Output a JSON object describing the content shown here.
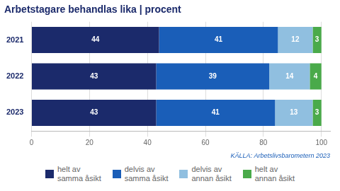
{
  "chart_data": {
    "type": "bar",
    "orientation": "horizontal",
    "stacked": true,
    "title": "Arbetstagare behandlas lika | procent",
    "annotations": [
      "KÄLLA: Arbetslivsbarometern 2023"
    ],
    "categories": [
      "2021",
      "2022",
      "2023"
    ],
    "series": [
      {
        "name": "helt av\nsamma åsikt",
        "color": "#1b2a6b",
        "values": [
          44,
          43,
          43
        ]
      },
      {
        "name": "delvis av\nsamma åsikt",
        "color": "#1a5eb8",
        "values": [
          41,
          39,
          41
        ]
      },
      {
        "name": "delvis av\nannan åsikt",
        "color": "#90bfe0",
        "values": [
          12,
          14,
          13
        ]
      },
      {
        "name": "helt av\nannan åsikt",
        "color": "#4aaa4a",
        "values": [
          3,
          4,
          3
        ]
      }
    ],
    "xlim": [
      0,
      103
    ],
    "xticks": [
      0,
      20,
      40,
      60,
      80,
      100
    ],
    "grid": true,
    "data_labels": true,
    "legend": "bottom"
  }
}
